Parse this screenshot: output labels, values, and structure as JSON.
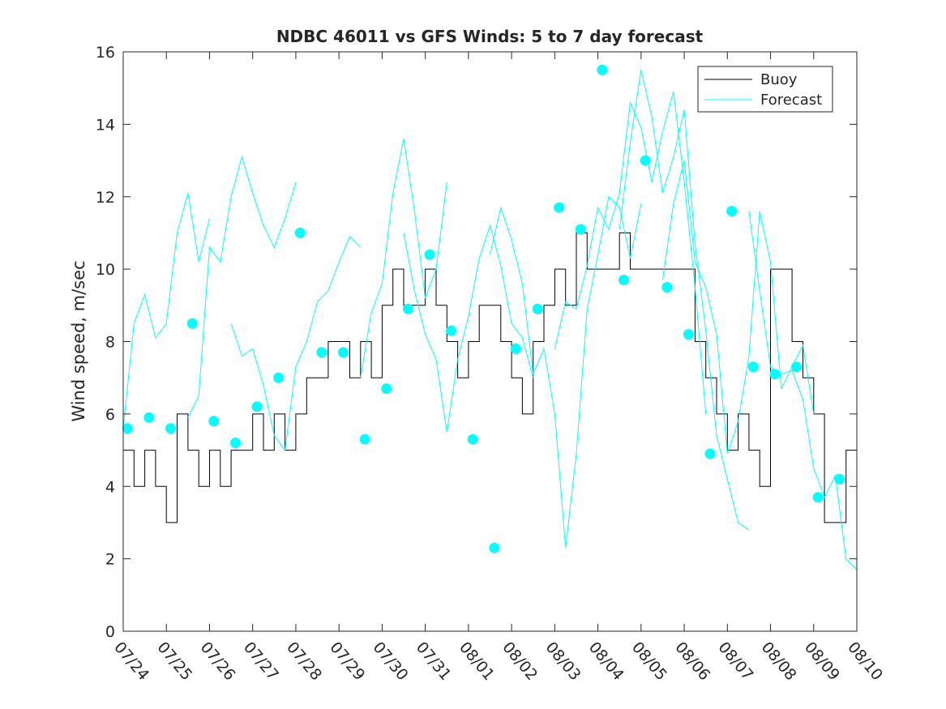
{
  "chart_data": {
    "type": "line",
    "title": "NDBC 46011 vs GFS Winds: 5 to 7 day forecast",
    "xlabel": "",
    "ylabel": "Wind speed, m/sec",
    "xlim": [
      0,
      17
    ],
    "ylim": [
      0,
      16
    ],
    "x_tick_labels": [
      "07/24",
      "07/25",
      "07/26",
      "07/27",
      "07/28",
      "07/29",
      "07/30",
      "07/31",
      "08/01",
      "08/02",
      "08/03",
      "08/04",
      "08/05",
      "08/06",
      "08/07",
      "08/08",
      "08/09",
      "08/10"
    ],
    "y_ticks": [
      0,
      2,
      4,
      6,
      8,
      10,
      12,
      14,
      16
    ],
    "grid": false,
    "legend_position": "top-right",
    "colors": {
      "buoy": "#000000",
      "forecast": "#00ffff"
    },
    "series": [
      {
        "name": "Buoy",
        "style": "step",
        "x": [
          0.0,
          0.25,
          0.5,
          0.75,
          1.0,
          1.25,
          1.5,
          1.75,
          2.0,
          2.25,
          2.5,
          2.75,
          3.0,
          3.25,
          3.5,
          3.75,
          4.0,
          4.25,
          4.5,
          4.75,
          5.0,
          5.25,
          5.5,
          5.75,
          6.0,
          6.25,
          6.5,
          6.75,
          7.0,
          7.25,
          7.5,
          7.75,
          8.0,
          8.25,
          8.5,
          8.75,
          9.0,
          9.25,
          9.5,
          9.75,
          10.0,
          10.25,
          10.5,
          10.75,
          11.0,
          11.25,
          11.5,
          11.75,
          12.0,
          12.25,
          12.5,
          12.75,
          13.0,
          13.25,
          13.5,
          13.75,
          14.0,
          14.25,
          14.5,
          14.75,
          15.0,
          15.25,
          15.5,
          15.75,
          16.0,
          16.25,
          16.5,
          16.75,
          17.0
        ],
        "y": [
          5,
          4,
          5,
          4,
          3,
          6,
          5,
          4,
          5,
          4,
          5,
          5,
          6,
          5,
          6,
          5,
          6,
          7,
          7,
          8,
          8,
          7,
          8,
          7,
          9,
          10,
          9,
          9,
          10,
          9,
          8,
          7,
          8,
          9,
          9,
          8,
          7,
          6,
          8,
          9,
          10,
          9,
          11,
          10,
          10,
          10,
          11,
          10,
          10,
          10,
          10,
          10,
          10,
          8,
          7,
          6,
          5,
          6,
          5,
          4,
          10,
          10,
          8,
          7,
          6,
          3,
          3,
          5,
          4
        ]
      },
      {
        "name": "Forecast",
        "runs": [
          {
            "x": [
              0.0,
              0.25,
              0.5,
              0.75,
              1.0,
              1.25,
              1.5,
              1.75,
              2.0
            ],
            "y": [
              5.6,
              8.5,
              9.3,
              8.1,
              8.5,
              11.0,
              12.1,
              10.2,
              11.4
            ]
          },
          {
            "x": [
              1.5,
              1.75,
              2.0,
              2.25,
              2.5,
              2.75,
              3.0,
              3.25,
              3.5,
              3.75,
              4.0
            ],
            "y": [
              5.9,
              6.5,
              10.6,
              10.2,
              12.0,
              13.1,
              12.1,
              11.2,
              10.6,
              11.4,
              12.4
            ]
          },
          {
            "x": [
              2.5,
              2.75,
              3.0,
              3.25,
              3.5,
              3.75,
              4.0,
              4.25,
              4.5,
              4.75,
              5.0,
              5.25,
              5.5
            ],
            "y": [
              8.5,
              7.6,
              7.8,
              6.8,
              5.4,
              5.0,
              7.3,
              8.0,
              9.1,
              9.4,
              10.2,
              10.9,
              10.6
            ]
          },
          {
            "x": [
              5.5,
              5.75,
              6.0,
              6.25,
              6.5,
              6.75,
              7.0,
              7.25,
              7.5
            ],
            "y": [
              7.0,
              8.8,
              9.6,
              12.1,
              13.6,
              11.6,
              9.2,
              10.0,
              12.4
            ]
          },
          {
            "x": [
              6.5,
              6.75,
              7.0,
              7.25,
              7.5,
              7.75,
              8.0,
              8.25,
              8.5,
              8.75,
              9.0,
              9.25,
              9.5
            ],
            "y": [
              11.0,
              9.4,
              8.2,
              7.5,
              5.5,
              7.5,
              8.7,
              10.3,
              11.2,
              10.1,
              8.5,
              8.1,
              7.0
            ]
          },
          {
            "x": [
              8.5,
              8.75,
              9.0,
              9.25,
              9.5,
              9.75,
              10.0,
              10.25,
              10.5,
              10.75,
              11.0,
              11.25,
              11.5,
              11.75,
              12.0
            ],
            "y": [
              10.4,
              11.7,
              10.8,
              9.6,
              7.1,
              7.8,
              6.0,
              2.3,
              4.9,
              8.9,
              10.4,
              12.0,
              11.7,
              10.3,
              11.8
            ]
          },
          {
            "x": [
              10.0,
              10.25,
              10.5,
              10.75,
              11.0,
              11.25,
              11.5,
              11.75,
              12.0,
              12.25,
              12.5,
              12.75,
              13.0,
              13.25,
              13.5
            ],
            "y": [
              7.8,
              9.1,
              8.9,
              10.1,
              11.7,
              11.1,
              12.1,
              14.6,
              13.9,
              12.4,
              13.8,
              14.9,
              12.4,
              9.5,
              6.0
            ]
          },
          {
            "x": [
              11.5,
              11.75,
              12.0,
              12.25,
              12.5,
              12.75,
              13.0,
              13.25,
              13.5,
              13.75,
              14.0,
              14.25,
              14.5
            ],
            "y": [
              11.1,
              13.5,
              15.5,
              14.2,
              12.1,
              13.1,
              14.4,
              10.7,
              8.3,
              5.4,
              4.2,
              3.0,
              2.8
            ]
          },
          {
            "x": [
              12.5,
              12.75,
              13.0,
              13.25,
              13.5,
              13.75,
              14.0,
              14.25,
              14.5,
              14.75,
              15.0,
              15.25,
              15.5,
              15.75,
              16.0
            ],
            "y": [
              9.7,
              11.8,
              13.0,
              10.2,
              9.5,
              8.2,
              4.9,
              5.8,
              7.6,
              11.6,
              10.2,
              6.7,
              7.3,
              7.9,
              6.0
            ]
          },
          {
            "x": [
              14.5,
              14.75,
              15.0,
              15.25,
              15.5,
              15.75,
              16.0,
              16.25,
              16.5,
              16.75,
              17.0
            ],
            "y": [
              11.6,
              9.4,
              7.3,
              7.1,
              7.2,
              6.4,
              4.5,
              3.7,
              4.3,
              2.0,
              1.7
            ]
          }
        ],
        "markers": {
          "x": [
            0.1,
            0.6,
            1.1,
            1.6,
            2.1,
            2.6,
            3.1,
            3.6,
            4.1,
            4.6,
            5.1,
            5.6,
            6.1,
            6.6,
            7.1,
            7.6,
            8.1,
            8.6,
            9.1,
            9.6,
            10.1,
            10.6,
            11.1,
            11.6,
            12.1,
            12.6,
            13.1,
            13.6,
            14.1,
            14.6,
            15.1,
            15.6,
            16.1,
            16.6
          ],
          "y": [
            5.6,
            5.9,
            5.6,
            8.5,
            5.8,
            5.2,
            6.2,
            7.0,
            11.0,
            7.7,
            7.7,
            5.3,
            6.7,
            8.9,
            10.4,
            8.3,
            5.3,
            2.3,
            7.8,
            8.9,
            11.7,
            11.1,
            15.5,
            9.7,
            13.0,
            9.5,
            8.2,
            4.9,
            11.6,
            7.3,
            7.1,
            7.3,
            3.7,
            4.2
          ]
        }
      }
    ],
    "legend": [
      {
        "label": "Buoy",
        "color": "#000000"
      },
      {
        "label": "Forecast",
        "color": "#00ffff"
      }
    ]
  }
}
